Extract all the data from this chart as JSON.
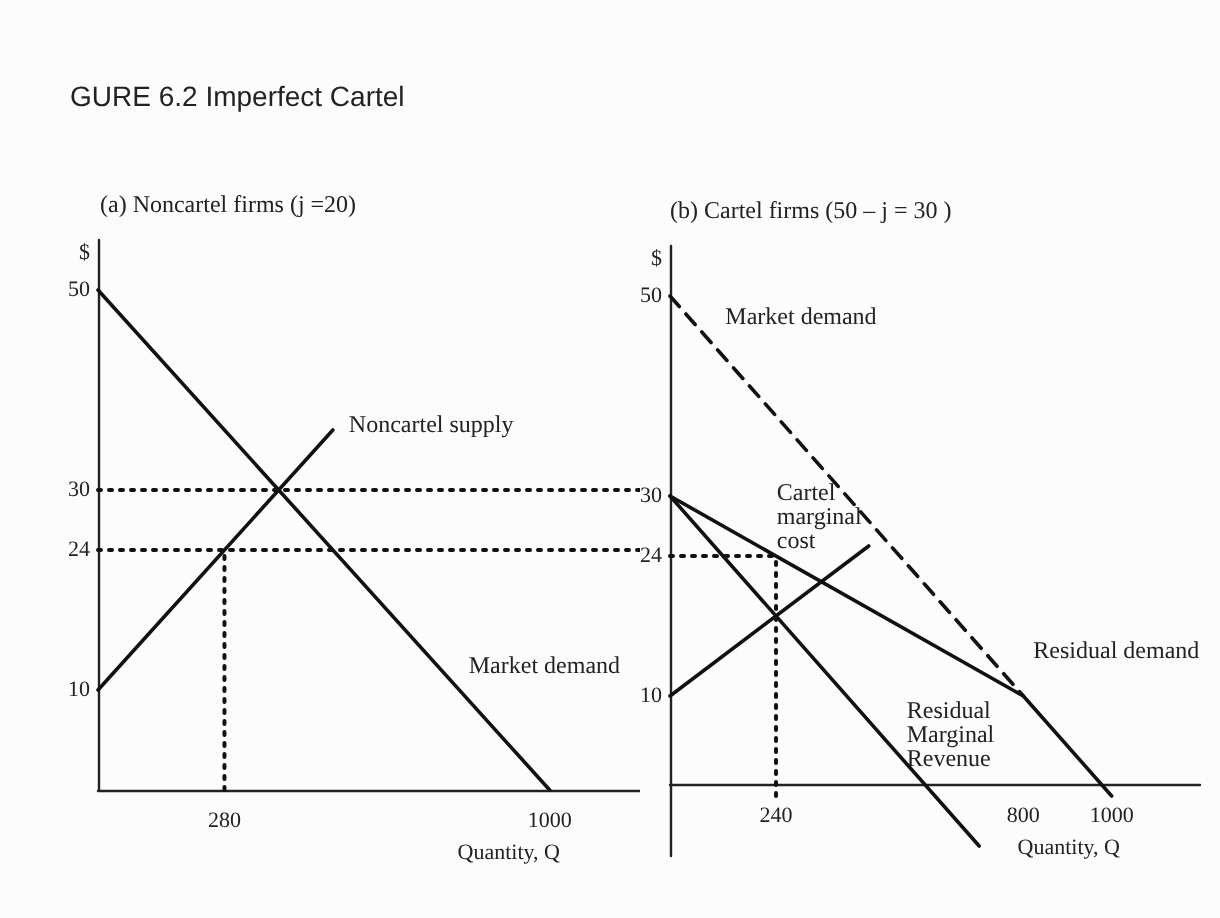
{
  "chart_data": [
    {
      "type": "line",
      "title": "GURE 6.2 Imperfect Cartel",
      "subtitle": "(a) Noncartel firms (j =20)",
      "xlabel": "Quantity, Q",
      "ylabel": "$",
      "xlim": [
        0,
        1200
      ],
      "ylim": [
        0,
        55
      ],
      "xticks": [
        280,
        1000
      ],
      "yticks": [
        10,
        24,
        30,
        50
      ],
      "marker": "none",
      "grid": false,
      "series": [
        {
          "name": "Market demand",
          "x": [
            0,
            1000
          ],
          "values": [
            50,
            0
          ],
          "color": "#111111",
          "line_style": "solid"
        },
        {
          "name": "Noncartel supply",
          "x": [
            0,
            520
          ],
          "values": [
            10,
            36
          ],
          "color": "#111111",
          "line_style": "solid"
        },
        {
          "x": [
            0,
            1200
          ],
          "values": [
            30,
            30
          ],
          "color": "#111111",
          "line_style": "dotted"
        },
        {
          "x": [
            0,
            1200
          ],
          "values": [
            24,
            24
          ],
          "color": "#111111",
          "line_style": "dotted"
        },
        {
          "x": [
            280,
            280
          ],
          "values": [
            0,
            24
          ],
          "color": "#111111",
          "line_style": "dotted"
        }
      ]
    },
    {
      "type": "line",
      "title": "(b) Cartel firms (50 – j = 30 )",
      "xlabel": "Quantity, Q",
      "ylabel": "$",
      "xlim": [
        0,
        1200
      ],
      "ylim": [
        -6,
        55
      ],
      "xticks": [
        240,
        800,
        1000
      ],
      "yticks": [
        10,
        24,
        30,
        50
      ],
      "marker": "none",
      "grid": false,
      "series": [
        {
          "name": "Market demand",
          "x": [
            0,
            800
          ],
          "values": [
            50,
            10
          ],
          "color": "#111111",
          "line_style": "dashed"
        },
        {
          "name": "Residual demand",
          "x": [
            0,
            800,
            1000
          ],
          "values": [
            30,
            10,
            0
          ],
          "color": "#111111",
          "line_style": "solid"
        },
        {
          "name": "Residual Marginal Revenue",
          "x": [
            0,
            700
          ],
          "values": [
            30,
            -5
          ],
          "color": "#111111",
          "line_style": "solid"
        },
        {
          "name": "Cartel marginal cost",
          "x": [
            0,
            450
          ],
          "values": [
            10,
            25
          ],
          "color": "#111111",
          "line_style": "solid"
        },
        {
          "x": [
            0,
            240
          ],
          "values": [
            24,
            24
          ],
          "color": "#111111",
          "line_style": "dotted"
        },
        {
          "x": [
            240,
            240
          ],
          "values": [
            0,
            24
          ],
          "color": "#111111",
          "line_style": "dotted"
        }
      ]
    }
  ]
}
